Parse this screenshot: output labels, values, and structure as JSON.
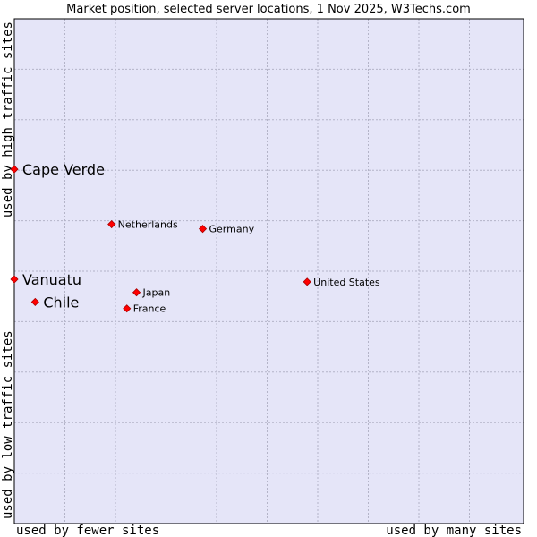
{
  "chart_data": {
    "type": "scatter",
    "title": "Market position, selected server locations, 1 Nov 2025, W3Techs.com",
    "xlabel_low": "used by fewer sites",
    "xlabel_high": "used by many sites",
    "ylabel_low": "used by low traffic sites",
    "ylabel_high": "used by high traffic sites",
    "grid": true,
    "xlim": [
      0,
      100
    ],
    "ylim": [
      0,
      100
    ],
    "points": [
      {
        "name": "Cape Verde",
        "x": 0,
        "y": 70.2,
        "highlight": true
      },
      {
        "name": "Netherlands",
        "x": 19.1,
        "y": 59.3,
        "highlight": false
      },
      {
        "name": "Germany",
        "x": 37.0,
        "y": 58.4,
        "highlight": false
      },
      {
        "name": "Vanuatu",
        "x": 0,
        "y": 48.4,
        "highlight": true
      },
      {
        "name": "United States",
        "x": 57.5,
        "y": 47.9,
        "highlight": false
      },
      {
        "name": "Japan",
        "x": 24.0,
        "y": 45.8,
        "highlight": false
      },
      {
        "name": "Chile",
        "x": 4.1,
        "y": 43.9,
        "highlight": true
      },
      {
        "name": "France",
        "x": 22.1,
        "y": 42.6,
        "highlight": false
      }
    ]
  },
  "colors": {
    "plot_background": "#e5e5f8",
    "grid": "#b4b4c8",
    "border": "#000000",
    "marker": "#ff0000",
    "marker_outline": "#aa0000",
    "text": "#000000"
  }
}
